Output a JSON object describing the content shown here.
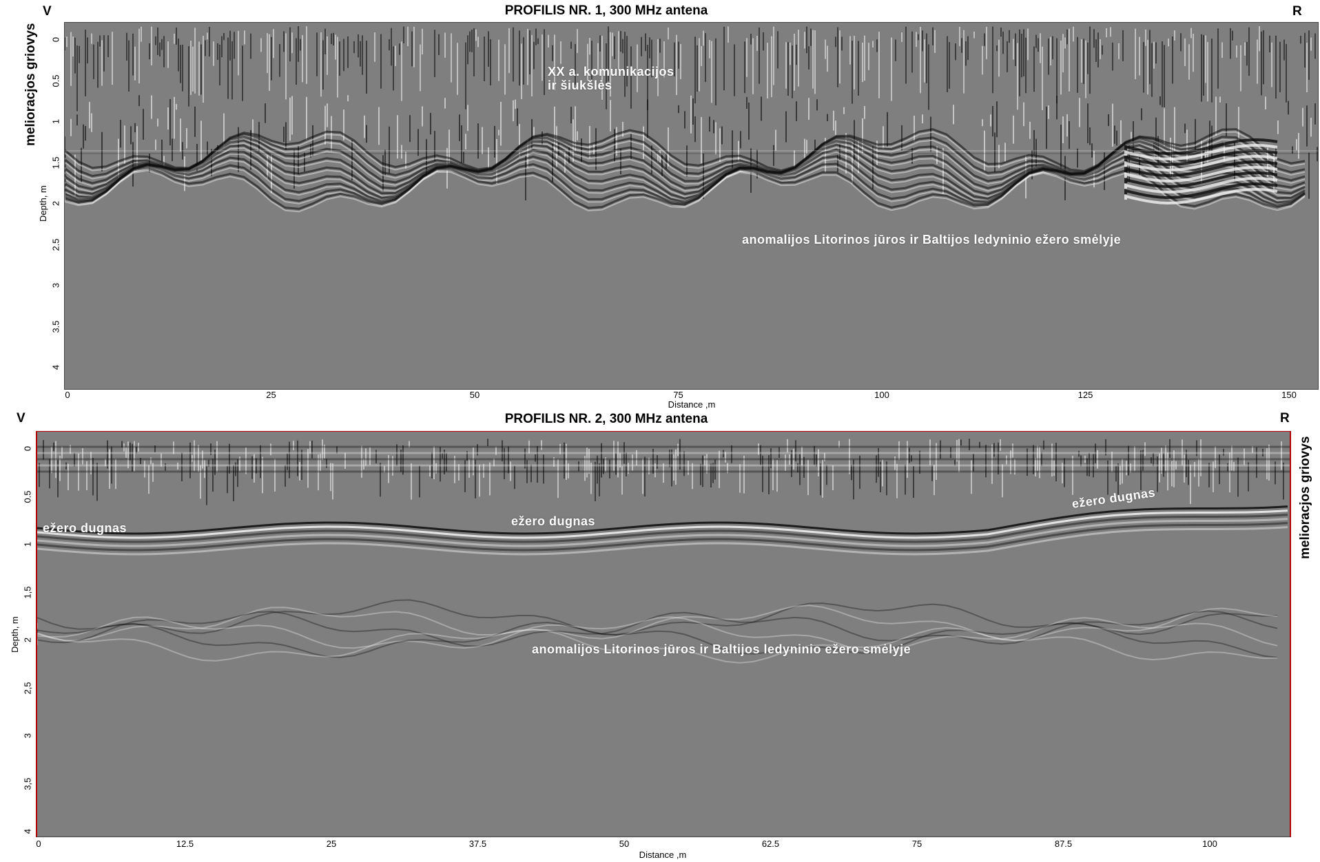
{
  "profile1": {
    "title": "PROFILIS NR. 1, 300 MHz antena",
    "left_corner": "V",
    "right_corner": "R",
    "side_label": "melioracjos griovys",
    "y_axis_title": "Depth, m",
    "x_axis_title": "Distance ,m",
    "y_ticks": [
      "0",
      "0.5",
      "1",
      "1.5",
      "2",
      "2.5",
      "3",
      "3.5",
      "4"
    ],
    "x_ticks": [
      "0",
      "25",
      "50",
      "75",
      "100",
      "125",
      "150"
    ],
    "annotations": [
      "XX a. komunikacijos",
      "ir šiukšlės",
      "anomalijos  Litorinos jūros ir Baltijos ledyninio ežero smėlyje"
    ]
  },
  "profile2": {
    "title": "PROFILIS NR. 2, 300 MHz antena",
    "left_corner": "V",
    "right_corner": "R",
    "side_label": "melioracjos griovys",
    "y_axis_title": "Depth, m",
    "x_axis_title": "Distance ,m",
    "y_ticks": [
      "0",
      "0.5",
      "1",
      "1,5",
      "2",
      "2,5",
      "3",
      "3,5",
      "4"
    ],
    "x_ticks": [
      "0",
      "12.5",
      "25",
      "37.5",
      "50",
      "62.5",
      "75",
      "87.5",
      "100"
    ],
    "annotations": [
      "ežero dugnas",
      "ežero dugnas",
      "ežero dugnas",
      "anomalijos Litorinos jūros ir Baltijos ledyninio ežero smėlyje"
    ]
  },
  "colors": {
    "background": "#7f7f7f",
    "reflector_dark": "#0a0a0a",
    "reflector_light": "#f4f4f4",
    "frame2_border": "#b00000"
  }
}
